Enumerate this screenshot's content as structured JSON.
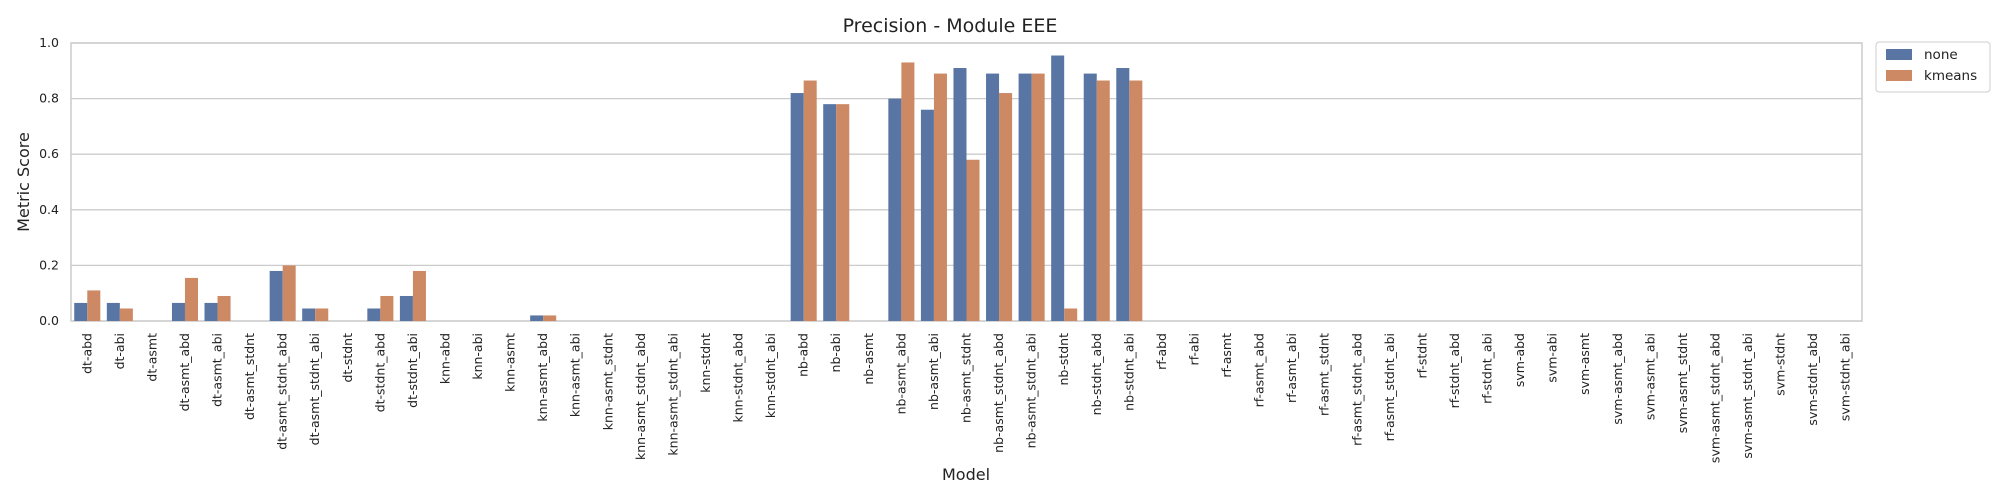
{
  "chart_data": {
    "type": "bar",
    "title": "Precision - Module EEE",
    "xlabel": "Model",
    "ylabel": "Metric Score",
    "ylim": [
      0,
      1.0
    ],
    "yticks": [
      "0.0",
      "0.2",
      "0.4",
      "0.6",
      "0.8",
      "1.0"
    ],
    "grid": true,
    "legend_position": "outside-top-right",
    "categories": [
      "dt-abd",
      "dt-abi",
      "dt-asmt",
      "dt-asmt_abd",
      "dt-asmt_abi",
      "dt-asmt_stdnt",
      "dt-asmt_stdnt_abd",
      "dt-asmt_stdnt_abi",
      "dt-stdnt",
      "dt-stdnt_abd",
      "dt-stdnt_abi",
      "knn-abd",
      "knn-abi",
      "knn-asmt",
      "knn-asmt_abd",
      "knn-asmt_abi",
      "knn-asmt_stdnt",
      "knn-asmt_stdnt_abd",
      "knn-asmt_stdnt_abi",
      "knn-stdnt",
      "knn-stdnt_abd",
      "knn-stdnt_abi",
      "nb-abd",
      "nb-abi",
      "nb-asmt",
      "nb-asmt_abd",
      "nb-asmt_abi",
      "nb-asmt_stdnt",
      "nb-asmt_stdnt_abd",
      "nb-asmt_stdnt_abi",
      "nb-stdnt",
      "nb-stdnt_abd",
      "nb-stdnt_abi",
      "rf-abd",
      "rf-abi",
      "rf-asmt",
      "rf-asmt_abd",
      "rf-asmt_abi",
      "rf-asmt_stdnt",
      "rf-asmt_stdnt_abd",
      "rf-asmt_stdnt_abi",
      "rf-stdnt",
      "rf-stdnt_abd",
      "rf-stdnt_abi",
      "svm-abd",
      "svm-abi",
      "svm-asmt",
      "svm-asmt_abd",
      "svm-asmt_abi",
      "svm-asmt_stdnt",
      "svm-asmt_stdnt_abd",
      "svm-asmt_stdnt_abi",
      "svm-stdnt",
      "svm-stdnt_abd",
      "svm-stdnt_abi"
    ],
    "series": [
      {
        "name": "none",
        "color": "#5875a4",
        "values": [
          0.065,
          0.065,
          0,
          0.065,
          0.065,
          0,
          0.18,
          0.045,
          0,
          0.045,
          0.09,
          0,
          0,
          0,
          0.02,
          0,
          0,
          0,
          0,
          0,
          0,
          0,
          0.82,
          0.78,
          0,
          0.8,
          0.76,
          0.91,
          0.89,
          0.89,
          0.955,
          0.89,
          0.91,
          0,
          0,
          0,
          0,
          0,
          0,
          0,
          0,
          0,
          0,
          0,
          0,
          0,
          0,
          0,
          0,
          0,
          0,
          0,
          0,
          0,
          0
        ]
      },
      {
        "name": "kmeans",
        "color": "#cc8963",
        "values": [
          0.11,
          0.045,
          0,
          0.155,
          0.09,
          0,
          0.2,
          0.045,
          0,
          0.09,
          0.18,
          0,
          0,
          0,
          0.02,
          0,
          0,
          0,
          0,
          0,
          0,
          0,
          0.865,
          0.78,
          0,
          0.93,
          0.89,
          0.58,
          0.82,
          0.89,
          0.045,
          0.865,
          0.865,
          0,
          0,
          0,
          0,
          0,
          0,
          0,
          0,
          0,
          0,
          0,
          0,
          0,
          0,
          0,
          0,
          0,
          0,
          0,
          0,
          0,
          0
        ]
      }
    ]
  }
}
